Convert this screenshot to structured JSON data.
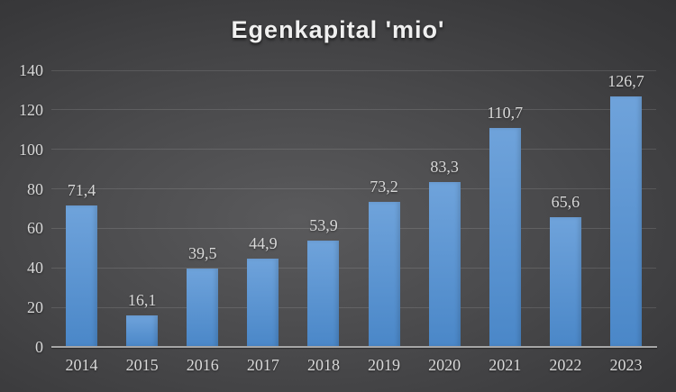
{
  "chart_data": {
    "type": "bar",
    "title": "Egenkapital 'mio'",
    "categories": [
      "2014",
      "2015",
      "2016",
      "2017",
      "2018",
      "2019",
      "2020",
      "2021",
      "2022",
      "2023"
    ],
    "values": [
      71.4,
      16.1,
      39.5,
      44.9,
      53.9,
      73.2,
      83.3,
      110.7,
      65.6,
      126.7
    ],
    "value_labels": [
      "71,4",
      "16,1",
      "39,5",
      "44,9",
      "53,9",
      "73,2",
      "83,3",
      "110,7",
      "65,6",
      "126,7"
    ],
    "xlabel": "",
    "ylabel": "",
    "ylim": [
      0,
      140
    ],
    "ytick_step": 20,
    "ytick_labels": [
      "0",
      "20",
      "40",
      "60",
      "80",
      "100",
      "120",
      "140"
    ],
    "grid": true,
    "legend": "none",
    "colors": {
      "bar_top": "#6FA3DB",
      "bar_bottom": "#4A87C8",
      "title_text": "#F0F0F0",
      "label_text": "#D9D9D9",
      "gridline": "rgba(255,255,255,0.12)",
      "axis_line": "#A6A6A6",
      "background_center": "#5A5A5C",
      "background_edge": "#272729"
    }
  }
}
